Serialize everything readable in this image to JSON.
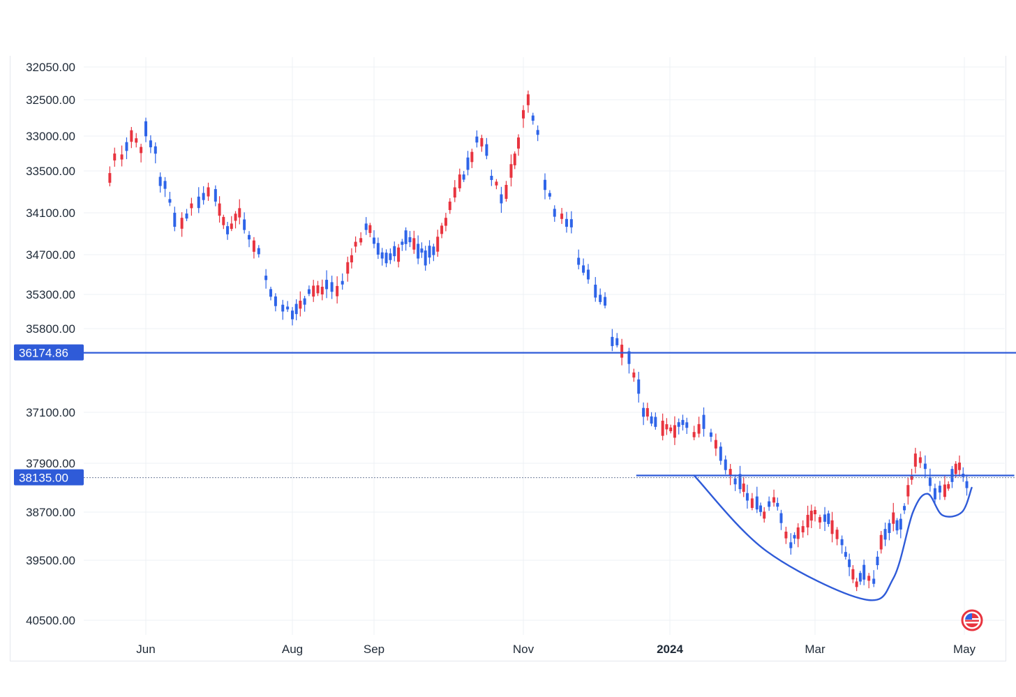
{
  "chart_data": {
    "type": "candlestick",
    "y_axis": {
      "inverted": true,
      "ticks": [
        "32050.00",
        "32500.00",
        "33000.00",
        "33500.00",
        "34100.00",
        "34700.00",
        "35300.00",
        "35800.00",
        "37100.00",
        "37900.00",
        "38700.00",
        "39500.00",
        "40500.00"
      ]
    },
    "x_axis": {
      "ticks": [
        {
          "label": "Jun",
          "date": "2023-06-01",
          "bold": false
        },
        {
          "label": "Aug",
          "date": "2023-08-01",
          "bold": false
        },
        {
          "label": "Sep",
          "date": "2023-09-01",
          "bold": false
        },
        {
          "label": "Nov",
          "date": "2023-11-01",
          "bold": false
        },
        {
          "label": "2024",
          "date": "2024-01-01",
          "bold": true
        },
        {
          "label": "Mar",
          "date": "2024-03-01",
          "bold": false
        },
        {
          "label": "May",
          "date": "2024-05-01",
          "bold": false
        }
      ]
    },
    "grid": true,
    "up_color": "#e8343f",
    "down_color": "#2e64e8",
    "line_color": "#2f5bd8",
    "horizontal_lines": [
      {
        "value": 36174.86,
        "label": "36174.86",
        "style": "solid"
      },
      {
        "value": 38135.0,
        "label": "38135.00",
        "style": "dotted"
      }
    ],
    "resistance_line": {
      "value": 38100,
      "from": "2023-12-18",
      "to": "2024-05-10"
    },
    "cup_handle_curve": [
      {
        "date": "2024-01-11",
        "value": 38100
      },
      {
        "date": "2024-02-10",
        "value": 39350
      },
      {
        "date": "2024-03-21",
        "value": 40150
      },
      {
        "date": "2024-04-02",
        "value": 39800
      },
      {
        "date": "2024-04-10",
        "value": 38700
      },
      {
        "date": "2024-04-16",
        "value": 38400
      },
      {
        "date": "2024-04-22",
        "value": 38750
      },
      {
        "date": "2024-04-30",
        "value": 38700
      },
      {
        "date": "2024-05-04",
        "value": 38300
      }
    ],
    "candles": [
      {
        "date": "2023-05-17",
        "value": 33600,
        "dir": "up"
      },
      {
        "date": "2023-05-19",
        "value": 33300,
        "dir": "up"
      },
      {
        "date": "2023-05-22",
        "value": 33300,
        "dir": "up"
      },
      {
        "date": "2023-05-24",
        "value": 33150,
        "dir": "down"
      },
      {
        "date": "2023-05-26",
        "value": 33000,
        "dir": "up"
      },
      {
        "date": "2023-05-30",
        "value": 33200,
        "dir": "up"
      },
      {
        "date": "2023-06-01",
        "value": 32900,
        "dir": "down"
      },
      {
        "date": "2023-06-05",
        "value": 33200,
        "dir": "down"
      },
      {
        "date": "2023-06-07",
        "value": 33650,
        "dir": "down"
      },
      {
        "date": "2023-06-09",
        "value": 33700,
        "dir": "down"
      },
      {
        "date": "2023-06-13",
        "value": 34200,
        "dir": "down"
      },
      {
        "date": "2023-06-16",
        "value": 34250,
        "dir": "up"
      },
      {
        "date": "2023-06-20",
        "value": 34000,
        "dir": "up"
      },
      {
        "date": "2023-06-23",
        "value": 33950,
        "dir": "down"
      },
      {
        "date": "2023-06-27",
        "value": 33800,
        "dir": "up"
      },
      {
        "date": "2023-06-30",
        "value": 33850,
        "dir": "down"
      },
      {
        "date": "2023-07-05",
        "value": 34350,
        "dir": "down"
      },
      {
        "date": "2023-07-10",
        "value": 34100,
        "dir": "up"
      },
      {
        "date": "2023-07-14",
        "value": 34450,
        "dir": "down"
      },
      {
        "date": "2023-07-18",
        "value": 34650,
        "dir": "down"
      },
      {
        "date": "2023-07-21",
        "value": 35050,
        "dir": "down"
      },
      {
        "date": "2023-07-25",
        "value": 35400,
        "dir": "down"
      },
      {
        "date": "2023-07-28",
        "value": 35500,
        "dir": "down"
      },
      {
        "date": "2023-08-01",
        "value": 35600,
        "dir": "down"
      },
      {
        "date": "2023-08-04",
        "value": 35450,
        "dir": "up"
      },
      {
        "date": "2023-08-09",
        "value": 35250,
        "dir": "up"
      },
      {
        "date": "2023-08-14",
        "value": 35150,
        "dir": "down"
      },
      {
        "date": "2023-08-18",
        "value": 35250,
        "dir": "up"
      },
      {
        "date": "2023-08-22",
        "value": 34900,
        "dir": "up"
      },
      {
        "date": "2023-08-25",
        "value": 34550,
        "dir": "up"
      },
      {
        "date": "2023-08-29",
        "value": 34300,
        "dir": "down"
      },
      {
        "date": "2023-09-01",
        "value": 34500,
        "dir": "down"
      },
      {
        "date": "2023-09-06",
        "value": 34750,
        "dir": "down"
      },
      {
        "date": "2023-09-11",
        "value": 34700,
        "dir": "up"
      },
      {
        "date": "2023-09-14",
        "value": 34450,
        "dir": "down"
      },
      {
        "date": "2023-09-19",
        "value": 34650,
        "dir": "down"
      },
      {
        "date": "2023-09-22",
        "value": 34750,
        "dir": "down"
      },
      {
        "date": "2023-09-27",
        "value": 34550,
        "dir": "up"
      },
      {
        "date": "2023-10-02",
        "value": 34000,
        "dir": "up"
      },
      {
        "date": "2023-10-06",
        "value": 33650,
        "dir": "up"
      },
      {
        "date": "2023-10-11",
        "value": 33300,
        "dir": "up"
      },
      {
        "date": "2023-10-13",
        "value": 33050,
        "dir": "down"
      },
      {
        "date": "2023-10-17",
        "value": 33200,
        "dir": "down"
      },
      {
        "date": "2023-10-19",
        "value": 33600,
        "dir": "down"
      },
      {
        "date": "2023-10-23",
        "value": 33900,
        "dir": "down"
      },
      {
        "date": "2023-10-25",
        "value": 33800,
        "dir": "up"
      },
      {
        "date": "2023-10-27",
        "value": 33500,
        "dir": "up"
      },
      {
        "date": "2023-10-30",
        "value": 33100,
        "dir": "up"
      },
      {
        "date": "2023-11-01",
        "value": 32700,
        "dir": "up"
      },
      {
        "date": "2023-11-03",
        "value": 32500,
        "dir": "up"
      },
      {
        "date": "2023-11-07",
        "value": 32950,
        "dir": "down"
      },
      {
        "date": "2023-11-10",
        "value": 33700,
        "dir": "down"
      },
      {
        "date": "2023-11-14",
        "value": 34100,
        "dir": "down"
      },
      {
        "date": "2023-11-17",
        "value": 34150,
        "dir": "up"
      },
      {
        "date": "2023-11-21",
        "value": 34250,
        "dir": "down"
      },
      {
        "date": "2023-11-24",
        "value": 34800,
        "dir": "down"
      },
      {
        "date": "2023-11-28",
        "value": 35000,
        "dir": "down"
      },
      {
        "date": "2023-12-01",
        "value": 35250,
        "dir": "down"
      },
      {
        "date": "2023-12-05",
        "value": 35400,
        "dir": "down"
      },
      {
        "date": "2023-12-08",
        "value": 36000,
        "dir": "down"
      },
      {
        "date": "2023-12-12",
        "value": 36150,
        "dir": "up"
      },
      {
        "date": "2023-12-15",
        "value": 36250,
        "dir": "down"
      },
      {
        "date": "2023-12-19",
        "value": 36700,
        "dir": "down"
      },
      {
        "date": "2023-12-21",
        "value": 37100,
        "dir": "down"
      },
      {
        "date": "2023-12-26",
        "value": 37250,
        "dir": "down"
      },
      {
        "date": "2023-12-29",
        "value": 37350,
        "dir": "up"
      },
      {
        "date": "2024-01-03",
        "value": 37400,
        "dir": "up"
      },
      {
        "date": "2024-01-08",
        "value": 37300,
        "dir": "down"
      },
      {
        "date": "2024-01-11",
        "value": 37450,
        "dir": "up"
      },
      {
        "date": "2024-01-15",
        "value": 37250,
        "dir": "down"
      },
      {
        "date": "2024-01-18",
        "value": 37450,
        "dir": "down"
      },
      {
        "date": "2024-01-22",
        "value": 37750,
        "dir": "down"
      },
      {
        "date": "2024-01-26",
        "value": 38050,
        "dir": "up"
      },
      {
        "date": "2024-01-30",
        "value": 38200,
        "dir": "down"
      },
      {
        "date": "2024-02-02",
        "value": 38450,
        "dir": "down"
      },
      {
        "date": "2024-02-06",
        "value": 38550,
        "dir": "down"
      },
      {
        "date": "2024-02-09",
        "value": 38750,
        "dir": "up"
      },
      {
        "date": "2024-02-13",
        "value": 38500,
        "dir": "up"
      },
      {
        "date": "2024-02-16",
        "value": 38800,
        "dir": "down"
      },
      {
        "date": "2024-02-20",
        "value": 39250,
        "dir": "down"
      },
      {
        "date": "2024-02-23",
        "value": 39050,
        "dir": "up"
      },
      {
        "date": "2024-02-27",
        "value": 38850,
        "dir": "up"
      },
      {
        "date": "2024-03-01",
        "value": 38700,
        "dir": "up"
      },
      {
        "date": "2024-03-05",
        "value": 38800,
        "dir": "down"
      },
      {
        "date": "2024-03-08",
        "value": 38950,
        "dir": "up"
      },
      {
        "date": "2024-03-12",
        "value": 39200,
        "dir": "down"
      },
      {
        "date": "2024-03-15",
        "value": 39550,
        "dir": "down"
      },
      {
        "date": "2024-03-18",
        "value": 39900,
        "dir": "up"
      },
      {
        "date": "2024-03-21",
        "value": 39700,
        "dir": "down"
      },
      {
        "date": "2024-03-25",
        "value": 39850,
        "dir": "down"
      },
      {
        "date": "2024-03-28",
        "value": 39200,
        "dir": "up"
      },
      {
        "date": "2024-04-02",
        "value": 38800,
        "dir": "up"
      },
      {
        "date": "2024-04-05",
        "value": 38900,
        "dir": "down"
      },
      {
        "date": "2024-04-08",
        "value": 38350,
        "dir": "up"
      },
      {
        "date": "2024-04-11",
        "value": 37850,
        "dir": "up"
      },
      {
        "date": "2024-04-15",
        "value": 37950,
        "dir": "down"
      },
      {
        "date": "2024-04-17",
        "value": 38200,
        "dir": "down"
      },
      {
        "date": "2024-04-19",
        "value": 38400,
        "dir": "down"
      },
      {
        "date": "2024-04-23",
        "value": 38350,
        "dir": "up"
      },
      {
        "date": "2024-04-26",
        "value": 38100,
        "dir": "down"
      },
      {
        "date": "2024-04-29",
        "value": 37950,
        "dir": "up"
      },
      {
        "date": "2024-05-02",
        "value": 38250,
        "dir": "down"
      }
    ]
  },
  "flag_icon_name": "us-flag-icon"
}
